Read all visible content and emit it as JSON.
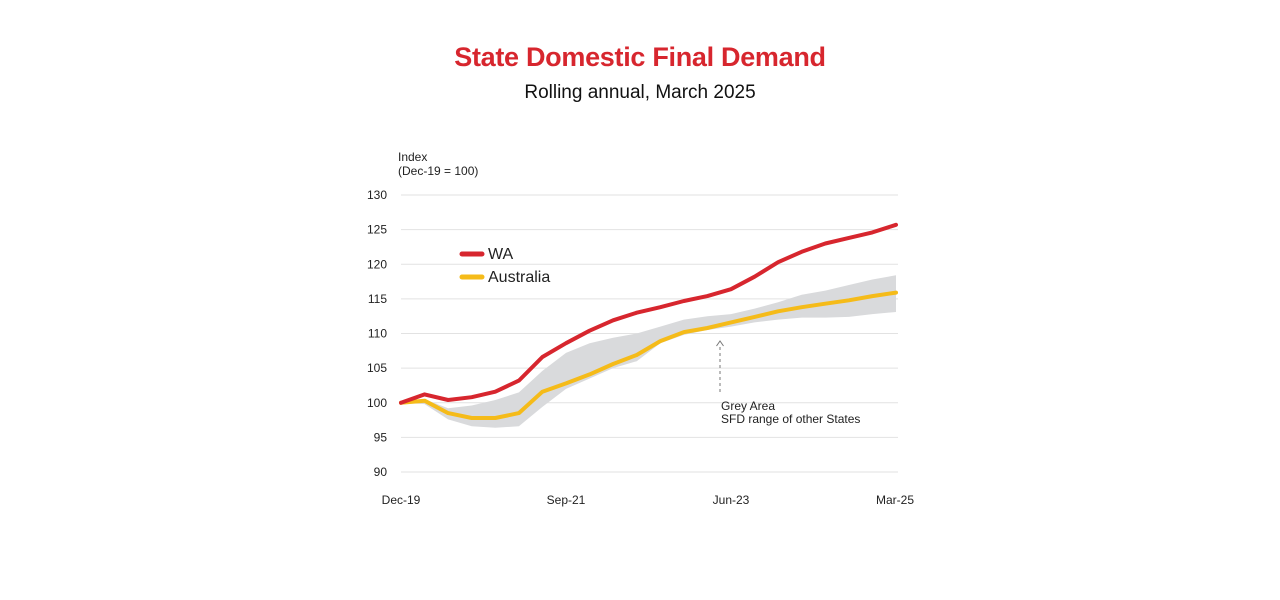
{
  "chart_data": {
    "type": "line",
    "title": "State Domestic Final Demand",
    "subtitle": "Rolling annual, March 2025",
    "ylabel_line1": "Index",
    "ylabel_line2": "(Dec-19 = 100)",
    "ylim": [
      90,
      130
    ],
    "yticks": [
      130,
      125,
      120,
      115,
      110,
      105,
      100,
      95,
      90
    ],
    "xtick_labels": [
      "Dec-19",
      "Sep-21",
      "Jun-23",
      "Mar-25"
    ],
    "xtick_indices": [
      0,
      7,
      14,
      21
    ],
    "x": [
      "Dec-19",
      "Mar-20",
      "Jun-20",
      "Sep-20",
      "Dec-20",
      "Mar-21",
      "Jun-21",
      "Sep-21",
      "Dec-21",
      "Mar-22",
      "Jun-22",
      "Sep-22",
      "Dec-22",
      "Mar-23",
      "Jun-23",
      "Sep-23",
      "Dec-23",
      "Mar-24",
      "Jun-24",
      "Sep-24",
      "Dec-24",
      "Mar-25"
    ],
    "grid": true,
    "legend_position": "top-left",
    "series": [
      {
        "name": "WA",
        "color": "#d7262e",
        "values": [
          100,
          101.2,
          100.4,
          100.8,
          101.6,
          103.2,
          106.6,
          108.6,
          110.4,
          111.9,
          113.0,
          113.8,
          114.7,
          115.4,
          116.4,
          118.2,
          120.3,
          121.8,
          123.0,
          123.8,
          124.6,
          125.7
        ]
      },
      {
        "name": "Australia",
        "color": "#f5bb19",
        "values": [
          100,
          100.3,
          98.5,
          97.8,
          97.8,
          98.5,
          101.6,
          102.8,
          104.1,
          105.6,
          106.9,
          108.9,
          110.2,
          110.8,
          111.6,
          112.4,
          113.2,
          113.8,
          114.3,
          114.8,
          115.4,
          115.9
        ]
      }
    ],
    "range_band": {
      "color": "#d9dadc",
      "upper": [
        100,
        100.5,
        99.2,
        99.6,
        100.4,
        101.5,
        104.6,
        107.2,
        108.6,
        109.4,
        110.0,
        111.0,
        112.0,
        112.5,
        112.8,
        113.6,
        114.5,
        115.6,
        116.2,
        117.0,
        117.8,
        118.4
      ],
      "lower": [
        100,
        99.8,
        97.6,
        96.6,
        96.4,
        96.6,
        99.4,
        102.0,
        103.5,
        105.0,
        106.0,
        108.6,
        109.8,
        110.5,
        111.0,
        111.6,
        112.0,
        112.3,
        112.3,
        112.4,
        112.8,
        113.1
      ]
    },
    "annotation": {
      "line1": "Grey Area",
      "line2": "SFD range of other States"
    }
  }
}
